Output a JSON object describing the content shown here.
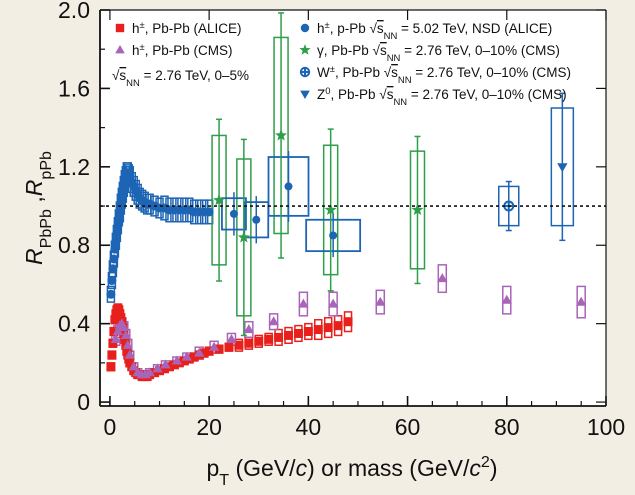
{
  "chart_data": {
    "type": "scatter",
    "xlabel": "p<sub>T</sub> (GeV/<i>c</i>) or mass (GeV/<i>c</i><sup>2</sup>)",
    "xlabel_parts": [
      "p",
      "T",
      " (GeV/",
      "c",
      ") or mass (GeV/",
      "c",
      "2",
      ")"
    ],
    "ylabel_parts": [
      "R",
      "PbPb",
      " ,",
      "R",
      "pPb"
    ],
    "xlim": [
      -2,
      100
    ],
    "ylim": [
      -0.02,
      2.0
    ],
    "x_ticks": [
      0,
      20,
      40,
      60,
      80,
      100
    ],
    "y_ticks": [
      0,
      0.4,
      0.8,
      1.2,
      1.6,
      2.0
    ],
    "y_tick_labels": [
      "0",
      "0.4",
      "0.8",
      "1.2",
      "1.6",
      "2.0"
    ],
    "reference_line": 1.0,
    "legend_note": "√s_NN = 2.76 TeV, 0–5%",
    "legend_note_parts": [
      "√",
      "s",
      "NN",
      " = 2.76 TeV, 0–5%"
    ],
    "series": [
      {
        "name": "h±, Pb-Pb (ALICE)",
        "legend_parts": [
          "h",
          "±",
          ", Pb-Pb (ALICE)"
        ],
        "color": "#e8201c",
        "marker": "square",
        "x": [
          0.2,
          0.4,
          0.6,
          0.8,
          1.0,
          1.2,
          1.4,
          1.6,
          1.8,
          2.0,
          2.2,
          2.4,
          2.6,
          2.8,
          3.0,
          3.2,
          3.4,
          3.6,
          3.8,
          4.0,
          4.4,
          4.8,
          5.2,
          5.6,
          6.0,
          6.5,
          7.0,
          7.5,
          8.0,
          9.0,
          10.0,
          11.0,
          12.0,
          13.0,
          14.0,
          15.0,
          16.0,
          17.0,
          18.0,
          19.0,
          20.0,
          22.0,
          24.0,
          26.0,
          28.0,
          30.0,
          32.0,
          34.0,
          36.0,
          38.0,
          40.0,
          42.0,
          44.0,
          46.0,
          48.0
        ],
        "y": [
          0.18,
          0.24,
          0.3,
          0.36,
          0.42,
          0.45,
          0.47,
          0.48,
          0.47,
          0.45,
          0.43,
          0.41,
          0.38,
          0.35,
          0.32,
          0.29,
          0.26,
          0.24,
          0.22,
          0.2,
          0.18,
          0.16,
          0.15,
          0.14,
          0.14,
          0.13,
          0.13,
          0.13,
          0.14,
          0.15,
          0.16,
          0.17,
          0.18,
          0.19,
          0.2,
          0.21,
          0.22,
          0.23,
          0.24,
          0.25,
          0.26,
          0.27,
          0.28,
          0.29,
          0.3,
          0.31,
          0.32,
          0.33,
          0.34,
          0.35,
          0.36,
          0.37,
          0.38,
          0.39,
          0.41
        ],
        "err": [
          0.02,
          0.02,
          0.02,
          0.02,
          0.02,
          0.02,
          0.02,
          0.02,
          0.02,
          0.02,
          0.02,
          0.02,
          0.02,
          0.02,
          0.02,
          0.02,
          0.02,
          0.02,
          0.02,
          0.02,
          0.015,
          0.015,
          0.015,
          0.015,
          0.015,
          0.015,
          0.015,
          0.015,
          0.015,
          0.015,
          0.015,
          0.015,
          0.015,
          0.015,
          0.015,
          0.015,
          0.02,
          0.02,
          0.02,
          0.02,
          0.02,
          0.02,
          0.02,
          0.03,
          0.03,
          0.03,
          0.03,
          0.04,
          0.04,
          0.04,
          0.04,
          0.05,
          0.05,
          0.05,
          0.05
        ]
      },
      {
        "name": "h±, Pb-Pb (CMS)",
        "legend_parts": [
          "h",
          "±",
          ", Pb-Pb (CMS)"
        ],
        "color": "#a865b7",
        "marker": "triangle",
        "x": [
          1.2,
          1.6,
          2.0,
          2.4,
          2.8,
          3.2,
          3.6,
          4.0,
          4.8,
          5.6,
          6.4,
          7.2,
          8.0,
          9.6,
          11.2,
          13.5,
          15.5,
          18.0,
          21.0,
          24.5,
          28.0,
          33.0,
          39.0,
          45.0,
          54.5,
          67.0,
          80.0,
          95.0
        ],
        "y": [
          0.32,
          0.36,
          0.39,
          0.4,
          0.38,
          0.34,
          0.29,
          0.24,
          0.18,
          0.15,
          0.14,
          0.14,
          0.15,
          0.17,
          0.19,
          0.21,
          0.23,
          0.25,
          0.28,
          0.32,
          0.37,
          0.41,
          0.5,
          0.5,
          0.51,
          0.63,
          0.52,
          0.51
        ],
        "err": [
          0.03,
          0.03,
          0.03,
          0.03,
          0.03,
          0.03,
          0.03,
          0.02,
          0.02,
          0.02,
          0.02,
          0.02,
          0.02,
          0.02,
          0.02,
          0.02,
          0.02,
          0.03,
          0.03,
          0.03,
          0.04,
          0.04,
          0.06,
          0.06,
          0.06,
          0.07,
          0.07,
          0.08
        ]
      },
      {
        "name": "h±, p-Pb √s_NN = 5.02 TeV, NSD (ALICE)",
        "legend_parts": [
          "h",
          "±",
          ", p-Pb ",
          "√",
          "s",
          "NN",
          " = 5.02 TeV, NSD (ALICE)"
        ],
        "color": "#1d64b4",
        "marker": "circle",
        "x": [
          0.2,
          0.4,
          0.6,
          0.8,
          1.0,
          1.2,
          1.4,
          1.6,
          1.8,
          2.0,
          2.2,
          2.4,
          2.6,
          2.8,
          3.0,
          3.2,
          3.4,
          3.6,
          3.8,
          4.0,
          4.4,
          4.8,
          5.2,
          5.6,
          6.0,
          6.5,
          7.0,
          7.5,
          8.0,
          9.0,
          10.0,
          11.0,
          12.0,
          13.0,
          14.0,
          15.0,
          16.0,
          17.0,
          18.0,
          19.0,
          20.0
        ],
        "y": [
          0.55,
          0.62,
          0.68,
          0.73,
          0.78,
          0.82,
          0.86,
          0.9,
          0.94,
          0.97,
          1.01,
          1.04,
          1.07,
          1.1,
          1.13,
          1.15,
          1.17,
          1.17,
          1.16,
          1.15,
          1.12,
          1.1,
          1.08,
          1.06,
          1.04,
          1.03,
          1.02,
          1.01,
          1.01,
          1.0,
          0.99,
          0.99,
          0.98,
          0.98,
          0.98,
          0.98,
          0.98,
          0.97,
          0.97,
          0.97,
          0.97
        ],
        "err": [
          0.04,
          0.04,
          0.04,
          0.04,
          0.04,
          0.04,
          0.04,
          0.04,
          0.04,
          0.05,
          0.05,
          0.05,
          0.05,
          0.05,
          0.05,
          0.05,
          0.05,
          0.05,
          0.05,
          0.05,
          0.05,
          0.05,
          0.05,
          0.05,
          0.05,
          0.05,
          0.05,
          0.05,
          0.05,
          0.05,
          0.05,
          0.06,
          0.06,
          0.06,
          0.06,
          0.06,
          0.06,
          0.06,
          0.06,
          0.06,
          0.06
        ]
      },
      {
        "name": "γ, Pb-Pb √s_NN = 2.76 TeV, 0–10% (CMS)",
        "legend_parts": [
          "γ, Pb-Pb ",
          "√",
          "s",
          "NN",
          " = 2.76 TeV, 0–10% (CMS)"
        ],
        "color": "#2e9e4a",
        "marker": "star",
        "x": [
          22.0,
          27.0,
          34.5,
          44.5,
          62.0
        ],
        "y": [
          1.03,
          0.84,
          1.36,
          0.98,
          0.98
        ],
        "err": [
          0.33,
          0.4,
          0.5,
          0.33,
          0.3
        ]
      },
      {
        "name": "W±, Pb-Pb √s_NN = 2.76 TeV, 0–10% (CMS)",
        "legend_parts": [
          "W",
          "±",
          ", Pb-Pb ",
          "√",
          "s",
          "NN",
          " = 2.76 TeV, 0–10% (CMS)"
        ],
        "color": "#1d64b4",
        "marker": "cross",
        "x": [
          80.4
        ],
        "y": [
          1.0
        ],
        "err": [
          0.1
        ]
      },
      {
        "name": "Z⁰, Pb-Pb √s_NN = 2.76 TeV, 0–10% (CMS)",
        "legend_parts": [
          "Z",
          "0",
          ", Pb-Pb ",
          "√",
          "s",
          "NN",
          " = 2.76 TeV, 0–10% (CMS)"
        ],
        "color": "#1d64b4",
        "marker": "triangle-down",
        "x": [
          91.2
        ],
        "y": [
          1.2
        ],
        "err": [
          0.3
        ]
      }
    ],
    "extra_blue_points": {
      "x": [
        25.0,
        29.5,
        36.0,
        45.0
      ],
      "y": [
        0.96,
        0.93,
        1.1,
        0.85
      ],
      "err": [
        0.08,
        0.09,
        0.15,
        0.08
      ]
    }
  },
  "colors": {
    "background": "#f3eee4",
    "plot_background": "#ffffff",
    "axis": "#111111",
    "reference_line": "#111111"
  }
}
